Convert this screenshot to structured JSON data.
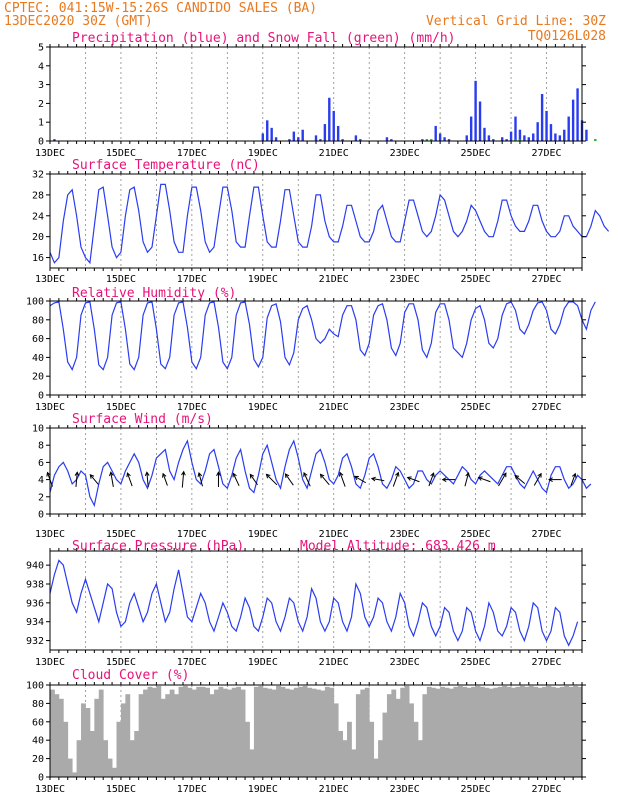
{
  "header": {
    "line1": "CPTEC:  041:15W-15:26S  CANDIDO SALES (BA)",
    "line2_left": "13DEC2020 30Z (GMT)",
    "line2_right": "Vertical Grid Line: 30Z",
    "line3_right": "TQ0126L028"
  },
  "chart_data": [
    {
      "id": "precip",
      "type": "bar",
      "title": "Precipitation (blue) and Snow Fall (green) (mm/h)",
      "ylim": [
        0,
        5
      ],
      "yticks": [
        "0",
        "1",
        "2",
        "3",
        "4",
        "5"
      ],
      "xticks": [
        "13DEC",
        "15DEC",
        "17DEC",
        "19DEC",
        "21DEC",
        "23DEC",
        "25DEC",
        "27DEC"
      ],
      "x_start": "2020-12-13T03:00",
      "x_step_hours": 3,
      "series": [
        {
          "values": [
            0,
            0.1,
            0,
            0,
            0,
            0,
            0,
            0,
            0,
            0,
            0,
            0,
            0,
            0,
            0,
            0,
            0,
            0,
            0,
            0,
            0,
            0,
            0,
            0,
            0,
            0,
            0,
            0,
            0,
            0,
            0,
            0,
            0,
            0,
            0,
            0,
            0,
            0,
            0,
            0,
            0,
            0,
            0,
            0,
            0,
            0,
            0,
            0,
            0.4,
            1.1,
            0.7,
            0.2,
            0,
            0,
            0.1,
            0.5,
            0.2,
            0.6,
            0,
            0,
            0.3,
            0.1,
            0.9,
            2.3,
            1.6,
            0.8,
            0.1,
            0,
            0,
            0.3,
            0.1,
            0,
            0,
            0,
            0,
            0,
            0.2,
            0.1,
            0,
            0,
            0,
            0,
            0,
            0,
            0.1,
            0,
            0,
            0.8,
            0.4,
            0.2,
            0.1,
            0,
            0,
            0,
            0.3,
            1.3,
            3.2,
            2.1,
            0.7,
            0.3,
            0.1,
            0,
            0.2,
            0.1,
            0.5,
            1.3,
            0.6,
            0.3,
            0.2,
            0.4,
            1.0,
            2.5,
            1.6,
            0.9,
            0.4,
            0.3,
            0.6,
            1.3,
            2.2,
            2.8,
            1.1,
            0.6
          ]
        },
        {
          "values": [
            0,
            0,
            0,
            0,
            0,
            0,
            0,
            0,
            0,
            0,
            0,
            0,
            0,
            0,
            0,
            0,
            0,
            0,
            0,
            0,
            0,
            0,
            0,
            0,
            0,
            0,
            0,
            0,
            0,
            0,
            0,
            0,
            0,
            0,
            0,
            0,
            0,
            0,
            0,
            0,
            0,
            0,
            0,
            0,
            0,
            0,
            0,
            0,
            0,
            0,
            0,
            0,
            0,
            0,
            0,
            0,
            0,
            0,
            0,
            0,
            0,
            0,
            0,
            0,
            0,
            0,
            0,
            0,
            0,
            0,
            0,
            0,
            0,
            0,
            0,
            0,
            0,
            0,
            0,
            0,
            0,
            0,
            0,
            0,
            0,
            0.1,
            0.1,
            0,
            0,
            0,
            0,
            0,
            0,
            0,
            0,
            0,
            0,
            0,
            0,
            0,
            0,
            0,
            0,
            0,
            0,
            0.1,
            0.1,
            0,
            0,
            0,
            0,
            0,
            0,
            0,
            0,
            0,
            0,
            0,
            0,
            0,
            0,
            0,
            0,
            0.1
          ]
        }
      ]
    },
    {
      "id": "temp",
      "type": "line",
      "title": "Surface Temperature (nC)",
      "ylim": [
        14,
        32
      ],
      "yticks": [
        "16",
        "20",
        "24",
        "28",
        "32"
      ],
      "xticks": [
        "13DEC",
        "15DEC",
        "17DEC",
        "19DEC",
        "21DEC",
        "23DEC",
        "25DEC",
        "27DEC"
      ],
      "x_start": "2020-12-13T03:00",
      "x_step_hours": 3,
      "values": [
        17,
        15,
        16,
        23,
        28,
        29,
        24,
        18,
        16,
        15,
        22,
        29,
        29.5,
        24,
        18,
        16,
        17,
        24,
        29,
        29.5,
        25,
        19,
        17,
        18,
        24,
        30,
        30,
        25,
        19,
        17,
        17,
        24,
        29.5,
        29.5,
        25,
        19,
        17,
        18,
        24,
        29.5,
        29.5,
        25,
        19,
        18,
        18,
        24,
        29.5,
        29.5,
        24,
        19,
        18,
        18,
        23,
        29,
        29,
        24,
        19,
        18,
        18,
        22,
        28,
        28,
        23,
        20,
        19,
        19,
        22,
        26,
        26,
        23,
        20,
        19,
        19,
        21,
        25,
        26,
        23,
        20,
        19,
        19,
        23,
        27,
        27,
        24,
        21,
        20,
        21,
        24,
        28,
        27,
        24,
        21,
        20,
        21,
        23,
        26,
        25,
        23,
        21,
        20,
        20,
        23,
        27,
        27,
        24,
        22,
        21,
        21,
        23,
        26,
        26,
        23,
        21,
        20,
        20,
        21,
        24,
        24,
        22,
        21,
        20,
        20,
        22,
        25,
        24,
        22,
        21
      ]
    },
    {
      "id": "rh",
      "type": "line",
      "title": "Relative Humidity (%)",
      "ylim": [
        0,
        100
      ],
      "yticks": [
        "0",
        "20",
        "40",
        "60",
        "80",
        "100"
      ],
      "xticks": [
        "13DEC",
        "15DEC",
        "17DEC",
        "19DEC",
        "21DEC",
        "23DEC",
        "25DEC",
        "27DEC"
      ],
      "x_start": "2020-12-13T03:00",
      "x_step_hours": 3,
      "values": [
        95,
        98,
        99,
        70,
        35,
        27,
        40,
        85,
        98,
        99,
        70,
        32,
        27,
        40,
        85,
        98,
        99,
        70,
        33,
        27,
        40,
        85,
        98,
        99,
        70,
        33,
        28,
        40,
        85,
        98,
        99,
        72,
        35,
        28,
        40,
        85,
        98,
        99,
        72,
        35,
        28,
        40,
        85,
        98,
        99,
        75,
        38,
        30,
        40,
        82,
        95,
        97,
        78,
        40,
        32,
        45,
        80,
        92,
        95,
        80,
        60,
        55,
        60,
        70,
        65,
        62,
        85,
        95,
        95,
        80,
        48,
        42,
        55,
        85,
        95,
        97,
        80,
        50,
        42,
        55,
        88,
        97,
        97,
        80,
        48,
        40,
        55,
        88,
        97,
        97,
        80,
        50,
        45,
        40,
        55,
        80,
        92,
        95,
        80,
        55,
        50,
        60,
        85,
        97,
        99,
        90,
        70,
        65,
        75,
        90,
        98,
        99,
        90,
        70,
        65,
        75,
        92,
        99,
        99,
        95,
        80,
        70,
        90,
        99
      ]
    },
    {
      "id": "wind",
      "type": "line",
      "title": "Surface Wind (m/s)",
      "ylim": [
        0,
        10
      ],
      "yticks": [
        "0",
        "2",
        "4",
        "6",
        "8",
        "10"
      ],
      "xticks": [
        "13DEC",
        "15DEC",
        "17DEC",
        "19DEC",
        "21DEC",
        "23DEC",
        "25DEC",
        "27DEC"
      ],
      "x_start": "2020-12-13T03:00",
      "x_step_hours": 3,
      "values": [
        2.5,
        4.5,
        5.5,
        6,
        5,
        3.5,
        4,
        5,
        4.5,
        2,
        1,
        3.5,
        5.5,
        6,
        5,
        4,
        3.5,
        5,
        6,
        7,
        6,
        4,
        3,
        4.5,
        6.5,
        7,
        7.5,
        5,
        4,
        6,
        7.5,
        8.5,
        6,
        4,
        3.5,
        5,
        7,
        7.5,
        5.5,
        3.5,
        3,
        4.5,
        6.5,
        7.5,
        5,
        3,
        2.5,
        4.5,
        7,
        8,
        6,
        4,
        3,
        5.5,
        7.5,
        8.5,
        6.5,
        4,
        3,
        5,
        7,
        7.5,
        6,
        4,
        3.5,
        4.5,
        6.5,
        7,
        5.5,
        3.5,
        3,
        4.5,
        6.5,
        7,
        5.5,
        3.5,
        3,
        4,
        5.5,
        5,
        4,
        3,
        3.5,
        5,
        5,
        4,
        3.5,
        4.5,
        5,
        4.5,
        4,
        3.5,
        4.5,
        5.5,
        5,
        4,
        3.5,
        4.5,
        5,
        4.5,
        4,
        3.5,
        4.5,
        5.5,
        5.5,
        4.5,
        3.5,
        3,
        4,
        5,
        4,
        3,
        2.5,
        4.5,
        5.5,
        5.5,
        4,
        3,
        3.5,
        4.5,
        4,
        3,
        3.5
      ],
      "arrows": [
        {
          "t": 0,
          "speed": 4,
          "dir_deg": 200
        },
        {
          "t": 6,
          "speed": 4,
          "dir_deg": 175
        },
        {
          "t": 10,
          "speed": 3,
          "dir_deg": 220
        },
        {
          "t": 14,
          "speed": 4,
          "dir_deg": 190
        },
        {
          "t": 18,
          "speed": 3.5,
          "dir_deg": 200
        },
        {
          "t": 22,
          "speed": 4,
          "dir_deg": 185
        },
        {
          "t": 26,
          "speed": 3,
          "dir_deg": 200
        },
        {
          "t": 30,
          "speed": 4.5,
          "dir_deg": 175
        },
        {
          "t": 34,
          "speed": 3.5,
          "dir_deg": 195
        },
        {
          "t": 38,
          "speed": 4,
          "dir_deg": 180
        },
        {
          "t": 42,
          "speed": 3.5,
          "dir_deg": 205
        },
        {
          "t": 46,
          "speed": 3,
          "dir_deg": 215
        },
        {
          "t": 50,
          "speed": 4,
          "dir_deg": 225
        },
        {
          "t": 54,
          "speed": 3.5,
          "dir_deg": 215
        },
        {
          "t": 58,
          "speed": 4,
          "dir_deg": 205
        },
        {
          "t": 62,
          "speed": 3.5,
          "dir_deg": 220
        },
        {
          "t": 66,
          "speed": 4,
          "dir_deg": 200
        },
        {
          "t": 70,
          "speed": 3,
          "dir_deg": 240
        },
        {
          "t": 74,
          "speed": 3,
          "dir_deg": 260
        },
        {
          "t": 78,
          "speed": 4,
          "dir_deg": 160
        },
        {
          "t": 82,
          "speed": 3,
          "dir_deg": 250
        },
        {
          "t": 86,
          "speed": 3.5,
          "dir_deg": 160
        },
        {
          "t": 90,
          "speed": 3,
          "dir_deg": 270
        },
        {
          "t": 94,
          "speed": 3.5,
          "dir_deg": 165
        },
        {
          "t": 98,
          "speed": 3,
          "dir_deg": 250
        },
        {
          "t": 102,
          "speed": 4,
          "dir_deg": 150
        },
        {
          "t": 106,
          "speed": 3,
          "dir_deg": 230
        },
        {
          "t": 110,
          "speed": 3.5,
          "dir_deg": 150
        },
        {
          "t": 114,
          "speed": 3,
          "dir_deg": 270
        },
        {
          "t": 118,
          "speed": 3,
          "dir_deg": 160
        }
      ]
    },
    {
      "id": "pres",
      "type": "line",
      "title": "Surface Pressure (hPa)",
      "annotation": "Model Altitude: 683.426 m",
      "ylim": [
        931,
        941.5
      ],
      "yticks": [
        "932",
        "934",
        "936",
        "938",
        "940"
      ],
      "xticks": [
        "13DEC",
        "15DEC",
        "17DEC",
        "19DEC",
        "21DEC",
        "23DEC",
        "25DEC",
        "27DEC"
      ],
      "x_start": "2020-12-13T03:00",
      "x_step_hours": 3,
      "values": [
        937,
        939,
        940.5,
        940,
        938,
        936,
        935,
        937,
        938.5,
        937,
        935.5,
        934,
        936,
        938,
        937.5,
        935,
        933.5,
        934,
        936,
        937,
        935.5,
        934,
        935,
        937,
        938,
        936,
        934,
        935,
        937.5,
        939.5,
        937,
        934.5,
        934,
        935.5,
        937,
        936,
        934,
        933,
        934.5,
        936,
        935,
        933.5,
        933,
        934.5,
        936.5,
        935.5,
        933.5,
        933,
        934.5,
        936.5,
        936,
        934,
        933,
        934.5,
        936.5,
        936,
        934,
        933,
        934.5,
        937.5,
        936.5,
        934,
        933,
        934,
        936.5,
        936,
        934,
        933,
        934.5,
        938,
        937,
        934.5,
        933.5,
        934.5,
        936.5,
        936,
        934,
        933,
        934.5,
        937,
        936,
        933.5,
        932.5,
        934,
        936,
        935.5,
        933.5,
        932.5,
        933.5,
        935.5,
        935,
        933,
        932,
        933,
        935.5,
        935,
        933,
        932,
        933.5,
        936,
        935,
        933,
        932.5,
        933.5,
        935.5,
        935,
        933,
        932,
        933.5,
        936,
        935.5,
        933,
        932,
        933,
        935.5,
        935,
        932.5,
        931.5,
        932.5,
        934
      ]
    },
    {
      "id": "cloud",
      "type": "bar",
      "title": "Cloud Cover (%)",
      "ylim": [
        0,
        100
      ],
      "yticks": [
        "0",
        "20",
        "40",
        "60",
        "80",
        "100"
      ],
      "xticks": [
        "13DEC",
        "15DEC",
        "17DEC",
        "19DEC",
        "21DEC",
        "23DEC",
        "25DEC",
        "27DEC"
      ],
      "x_start": "2020-12-13T03:00",
      "x_step_hours": 3,
      "values": [
        95,
        90,
        85,
        60,
        20,
        5,
        40,
        80,
        75,
        50,
        85,
        95,
        40,
        20,
        10,
        60,
        80,
        90,
        40,
        50,
        90,
        95,
        98,
        97,
        99,
        85,
        90,
        95,
        90,
        98,
        99,
        97,
        95,
        98,
        98,
        97,
        90,
        95,
        98,
        96,
        95,
        97,
        98,
        95,
        60,
        30,
        98,
        99,
        97,
        96,
        95,
        99,
        98,
        96,
        95,
        97,
        98,
        99,
        97,
        96,
        95,
        94,
        98,
        97,
        80,
        50,
        40,
        60,
        30,
        90,
        95,
        97,
        60,
        20,
        40,
        70,
        90,
        95,
        85,
        97,
        99,
        80,
        60,
        40,
        90,
        98,
        97,
        96,
        98,
        97,
        96,
        98,
        99,
        98,
        97,
        98,
        99,
        98,
        97,
        96,
        97,
        98,
        99,
        98,
        97,
        98,
        99,
        98,
        99,
        98,
        97,
        98,
        99,
        98,
        97,
        98,
        99,
        98,
        99,
        98
      ]
    }
  ]
}
